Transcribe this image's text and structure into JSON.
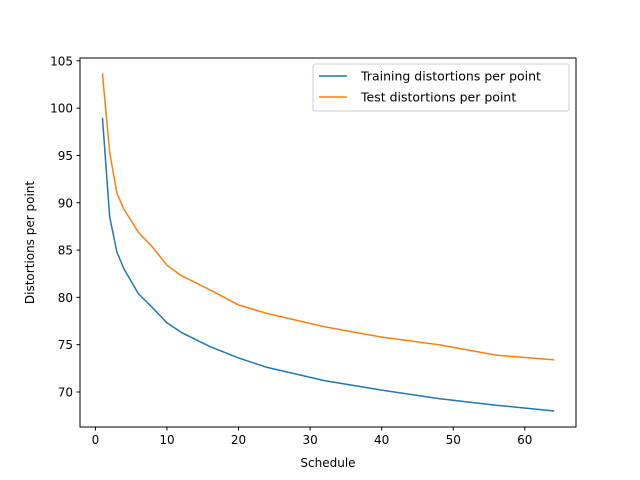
{
  "chart_data": {
    "type": "line",
    "title": "",
    "xlabel": "Schedule",
    "ylabel": "Distortions per point",
    "xlim": [
      -2.15,
      67.15
    ],
    "ylim": [
      66.3,
      105.3
    ],
    "xticks": [
      0,
      10,
      20,
      30,
      40,
      50,
      60
    ],
    "yticks": [
      70,
      75,
      80,
      85,
      90,
      95,
      100,
      105
    ],
    "grid": false,
    "legend_position": "top-right",
    "series": [
      {
        "name": "Training distortions per point",
        "color": "#1f77b4",
        "points": [
          [
            1,
            98.9
          ],
          [
            2,
            88.5
          ],
          [
            3,
            84.8
          ],
          [
            4,
            83.0
          ],
          [
            5,
            81.7
          ],
          [
            6,
            80.4
          ],
          [
            8,
            78.9
          ],
          [
            10,
            77.3
          ],
          [
            12,
            76.3
          ],
          [
            16,
            74.8
          ],
          [
            20,
            73.6
          ],
          [
            24,
            72.6
          ],
          [
            28,
            71.9
          ],
          [
            32,
            71.2
          ],
          [
            40,
            70.2
          ],
          [
            48,
            69.3
          ],
          [
            56,
            68.6
          ],
          [
            64,
            68.0
          ]
        ]
      },
      {
        "name": "Test distortions per point",
        "color": "#ff7f0e",
        "points": [
          [
            1,
            103.6
          ],
          [
            2,
            95.3
          ],
          [
            3,
            91.0
          ],
          [
            4,
            89.3
          ],
          [
            5,
            88.1
          ],
          [
            6,
            86.9
          ],
          [
            8,
            85.3
          ],
          [
            10,
            83.4
          ],
          [
            12,
            82.3
          ],
          [
            16,
            80.8
          ],
          [
            20,
            79.2
          ],
          [
            24,
            78.3
          ],
          [
            28,
            77.6
          ],
          [
            32,
            76.9
          ],
          [
            40,
            75.8
          ],
          [
            48,
            75.0
          ],
          [
            56,
            73.9
          ],
          [
            64,
            73.4
          ]
        ]
      }
    ]
  }
}
